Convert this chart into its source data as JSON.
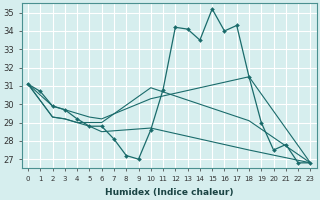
{
  "xlabel": "Humidex (Indice chaleur)",
  "ylabel": "",
  "background_color": "#d6eeee",
  "line_color": "#1a6b6b",
  "grid_color": "#b8d8d8",
  "xlim": [
    -0.5,
    23.5
  ],
  "ylim": [
    26.5,
    35.5
  ],
  "xticks": [
    0,
    1,
    2,
    3,
    4,
    5,
    6,
    7,
    8,
    9,
    10,
    11,
    12,
    13,
    14,
    15,
    16,
    17,
    18,
    19,
    20,
    21,
    22,
    23
  ],
  "yticks": [
    27,
    28,
    29,
    30,
    31,
    32,
    33,
    34,
    35
  ],
  "lines": [
    {
      "x": [
        0,
        1,
        2,
        3,
        4,
        5,
        6,
        7,
        8,
        9,
        10,
        11,
        12,
        13,
        14,
        15,
        16,
        17,
        18,
        19,
        20,
        21,
        22,
        23
      ],
      "y": [
        31.1,
        30.7,
        29.9,
        29.7,
        29.2,
        28.8,
        28.8,
        28.1,
        27.2,
        27.0,
        28.6,
        30.8,
        34.2,
        34.1,
        33.5,
        35.2,
        34.0,
        34.3,
        31.5,
        29.0,
        27.5,
        27.8,
        26.8,
        26.8
      ],
      "marker": true
    },
    {
      "x": [
        0,
        2,
        3,
        4,
        5,
        6,
        10,
        18,
        23
      ],
      "y": [
        31.1,
        29.9,
        29.7,
        29.5,
        29.3,
        29.2,
        30.3,
        31.5,
        26.8
      ],
      "marker": false
    },
    {
      "x": [
        0,
        2,
        3,
        4,
        5,
        6,
        10,
        18,
        23
      ],
      "y": [
        31.1,
        29.3,
        29.2,
        29.0,
        29.0,
        29.0,
        30.9,
        29.1,
        26.8
      ],
      "marker": false
    },
    {
      "x": [
        0,
        2,
        3,
        4,
        5,
        6,
        10,
        18,
        23
      ],
      "y": [
        31.1,
        29.3,
        29.2,
        29.0,
        28.8,
        28.5,
        28.7,
        27.5,
        26.8
      ],
      "marker": false
    }
  ]
}
